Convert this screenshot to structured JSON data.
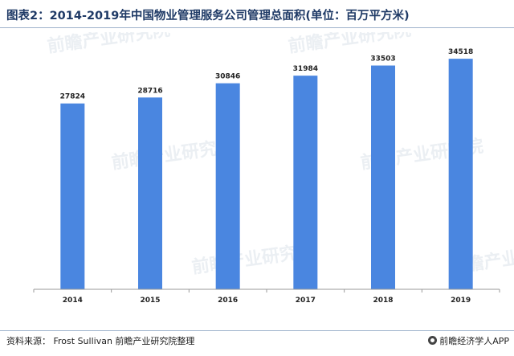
{
  "title": "图表2：2014-2019年中国物业管理服务公司管理总面积(单位：百万平方米)",
  "source": "资料来源： Frost Sullivan 前瞻产业研究院整理",
  "brand": "前瞻经济学人APP",
  "watermark": "前瞻产业研究院",
  "chart_data": {
    "type": "bar",
    "categories": [
      "2014",
      "2015",
      "2016",
      "2017",
      "2018",
      "2019"
    ],
    "values": [
      27824,
      28716,
      30846,
      31984,
      33503,
      34518
    ],
    "title": "图表2：2014-2019年中国物业管理服务公司管理总面积(单位：百万平方米)",
    "xlabel": "",
    "ylabel": "",
    "ylim": [
      0,
      38500
    ],
    "bar_color": "#4a86e0",
    "grid": false,
    "legend": "none"
  }
}
